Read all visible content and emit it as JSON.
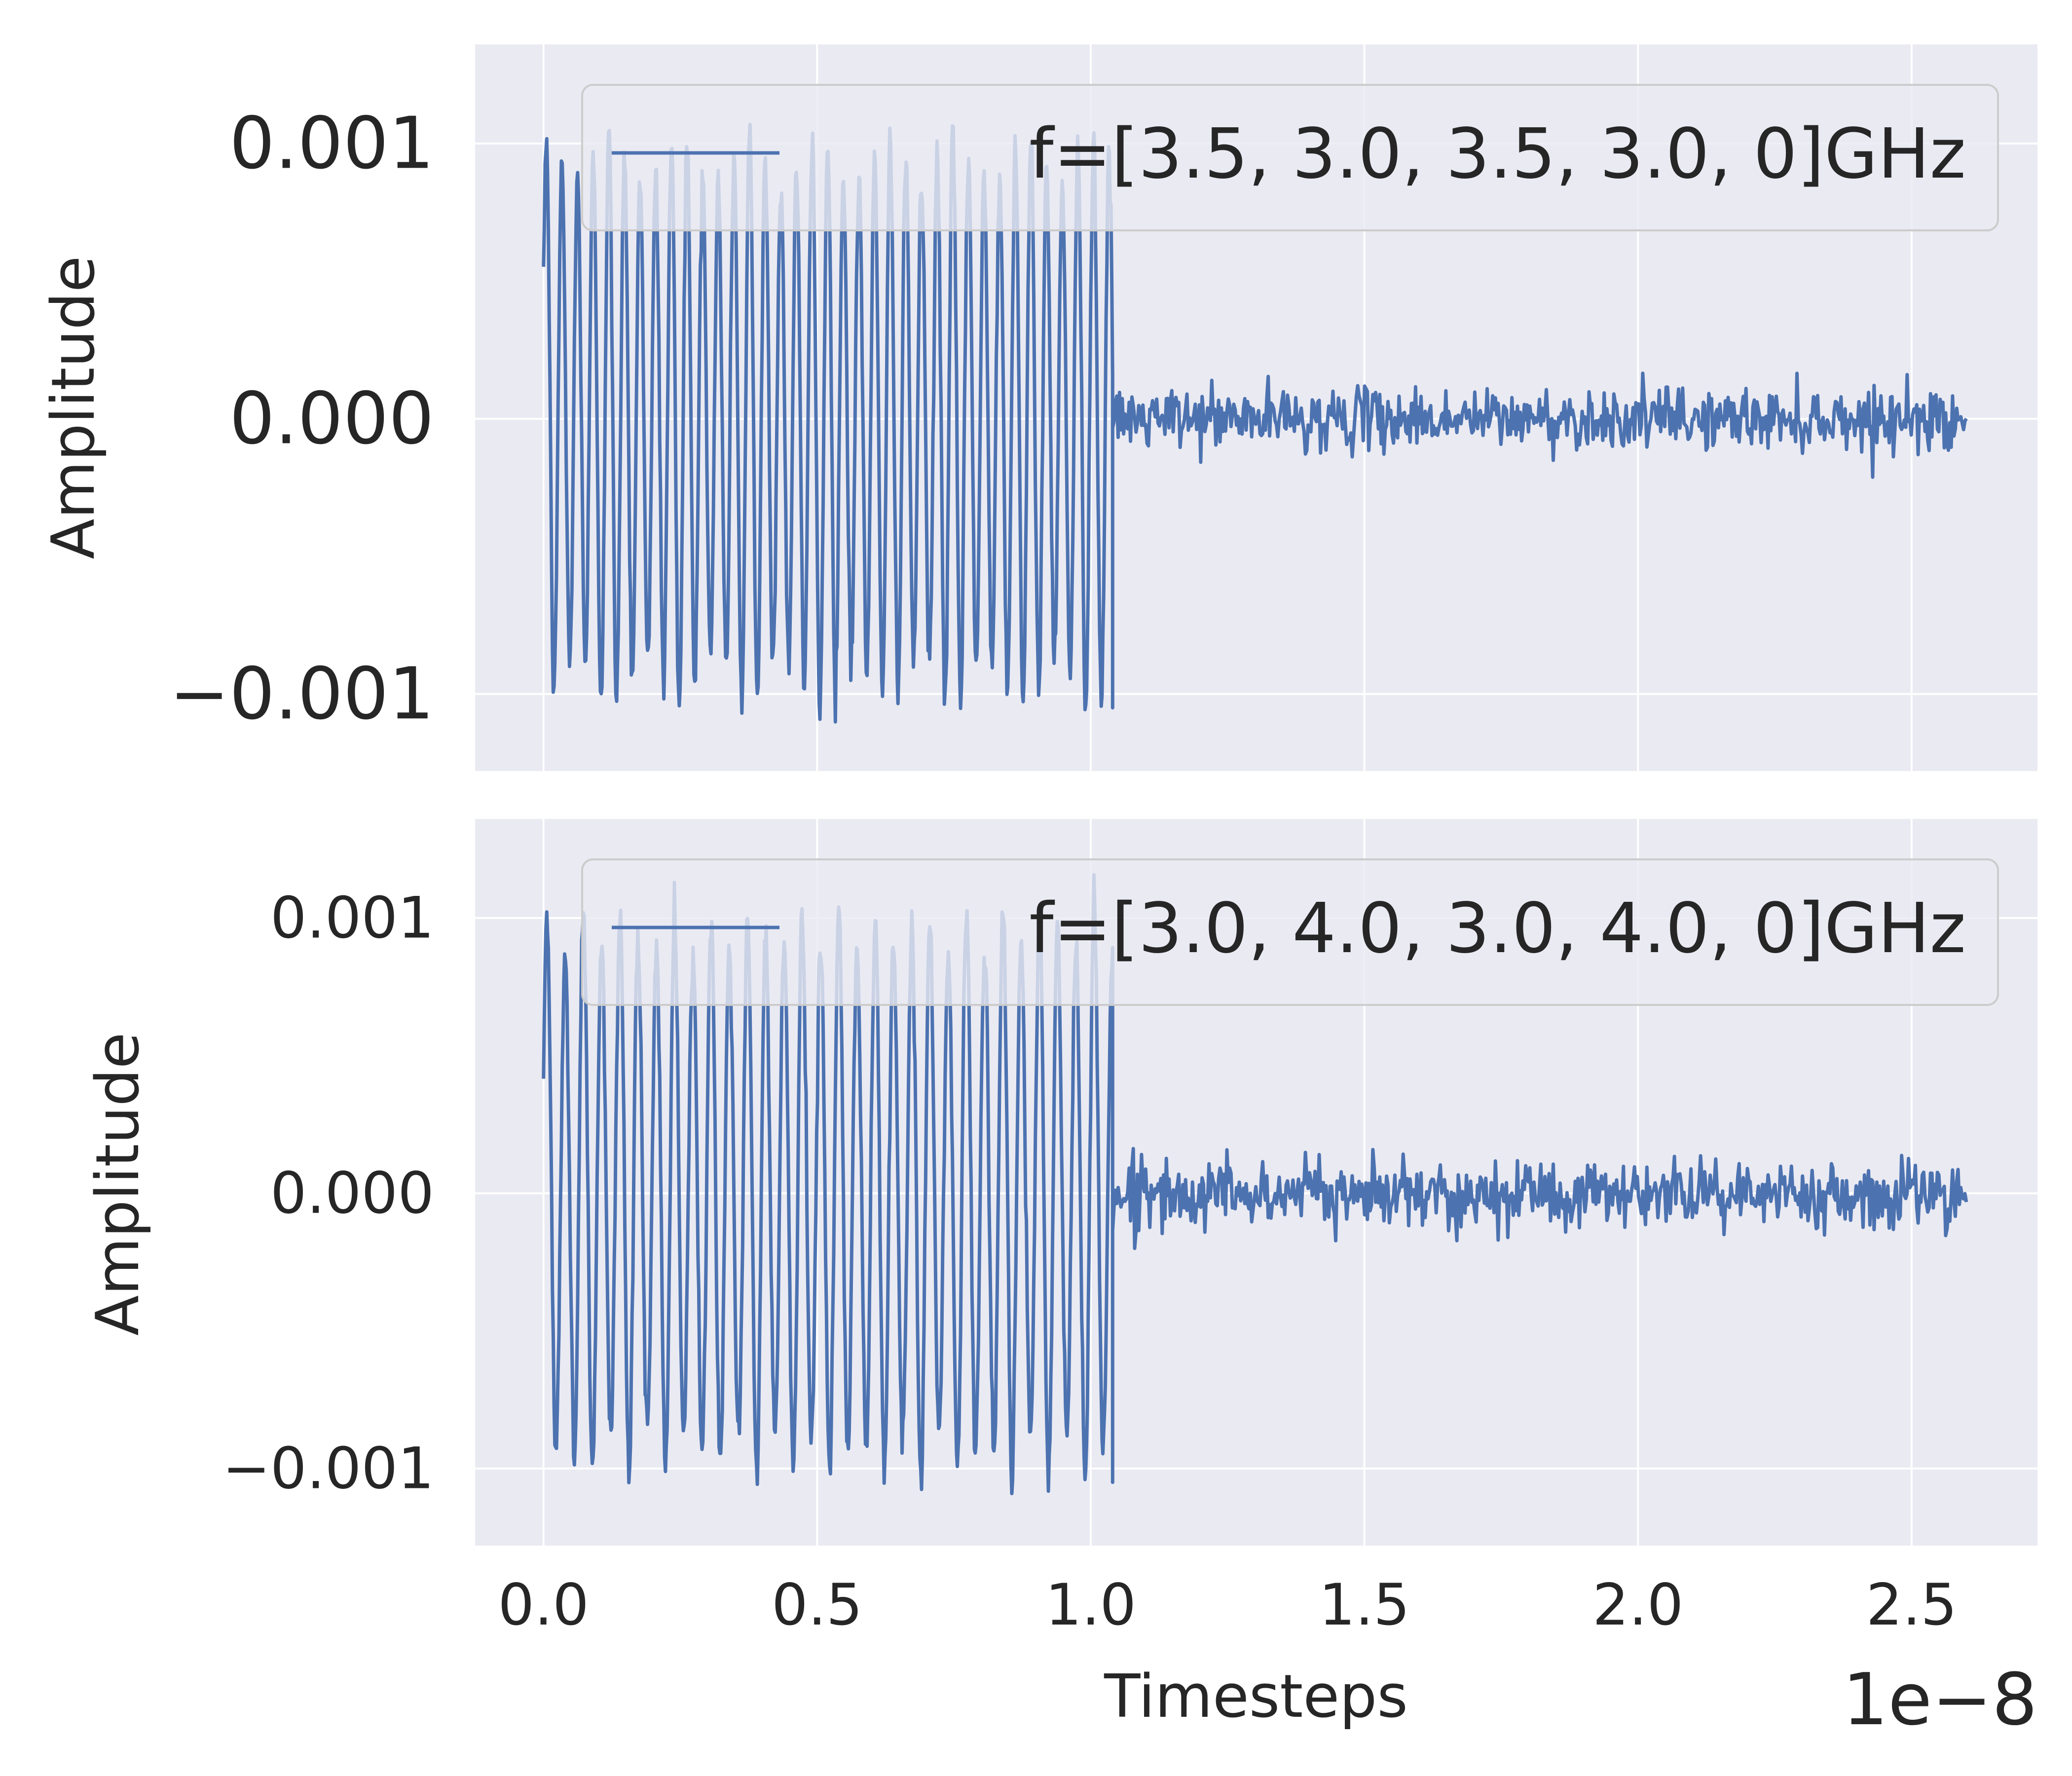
{
  "chart_data": [
    {
      "type": "line",
      "xlabel": "",
      "ylabel": "Amplitude",
      "xlim": [
        -1.25e-09,
        2.73e-08
      ],
      "ylim": [
        -0.00128,
        0.00136
      ],
      "x_ticks": [
        0.0,
        5e-09,
        1e-08,
        1.5e-08,
        2e-08,
        2.5e-08
      ],
      "y_ticks": [
        -0.001,
        0.0,
        0.001
      ],
      "y_tick_labels": [
        "−0.001",
        "0.000",
        "0.001"
      ],
      "show_x_tick_labels": false,
      "grid": true,
      "legend_position": "upper right",
      "series": [
        {
          "name": "f=[3.5, 3.0, 3.5, 3.0, 0]GHz",
          "color": "#4c72b0",
          "segments": [
            {
              "x_start": 0.0,
              "x_end": 1.04e-08,
              "kind": "oscillation",
              "frequencies_ghz": [
                3.5,
                3.0
              ],
              "amplitude": 0.00105,
              "start_value": 0.00045
            },
            {
              "x_start": 1.04e-08,
              "x_end": 2.6e-08,
              "kind": "noise",
              "mean": 0.0,
              "std": 5.5e-05,
              "min": -0.00026,
              "max": 0.00024
            }
          ]
        }
      ]
    },
    {
      "type": "line",
      "xlabel": "Timesteps",
      "ylabel": "Amplitude",
      "xlim": [
        -1.25e-09,
        2.73e-08
      ],
      "ylim": [
        -0.00128,
        0.00136
      ],
      "x_ticks": [
        0.0,
        5e-09,
        1e-08,
        1.5e-08,
        2e-08,
        2.5e-08
      ],
      "x_tick_labels": [
        "0.0",
        "0.5",
        "1.0",
        "1.5",
        "2.0",
        "2.5"
      ],
      "x_offset_text": "1e−8",
      "y_ticks": [
        -0.001,
        0.0,
        0.001
      ],
      "y_tick_labels": [
        "−0.001",
        "0.000",
        "0.001"
      ],
      "grid": true,
      "legend_position": "upper right",
      "series": [
        {
          "name": "f=[3.0, 4.0, 3.0, 4.0, 0]GHz",
          "color": "#4c72b0",
          "segments": [
            {
              "x_start": 0.0,
              "x_end": 1.04e-08,
              "kind": "oscillation",
              "frequencies_ghz": [
                3.0,
                4.0
              ],
              "amplitude": 0.00105,
              "start_value": 0.0004
            },
            {
              "x_start": 1.04e-08,
              "x_end": 2.6e-08,
              "kind": "noise",
              "mean": 0.0,
              "std": 6e-05,
              "min": -0.00026,
              "max": 0.00027
            }
          ]
        }
      ]
    }
  ]
}
